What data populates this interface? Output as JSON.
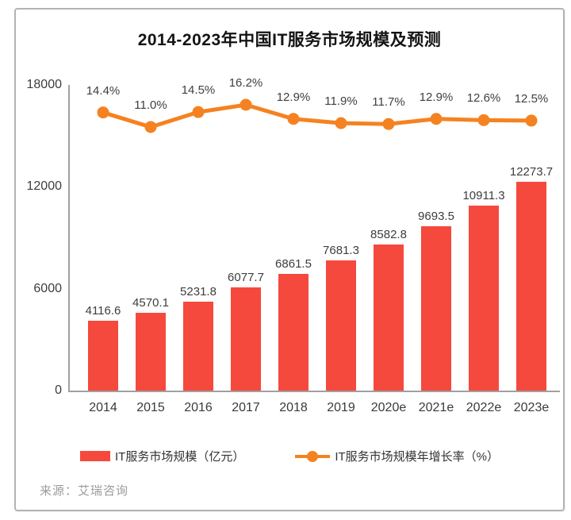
{
  "title": "2014-2023年中国IT服务市场规模及预测",
  "source": "来源：艾瑞咨询",
  "colors": {
    "bar": "#F5493D",
    "line": "#F58220",
    "axis": "#a0a0a0",
    "value_label": "#3d3d3d",
    "source_text": "#9b9b9b"
  },
  "legend": [
    {
      "label": "IT服务市场规模（亿元）",
      "type": "bar"
    },
    {
      "label": "IT服务市场规模年增长率（%）",
      "type": "line"
    }
  ],
  "chart_data": {
    "type": "bar",
    "title": "2014-2023年中国IT服务市场规模及预测",
    "categories": [
      "2014",
      "2015",
      "2016",
      "2017",
      "2018",
      "2019",
      "2020e",
      "2021e",
      "2022e",
      "2023e"
    ],
    "series": [
      {
        "name": "IT服务市场规模（亿元）",
        "type": "bar",
        "values": [
          4116.6,
          4570.1,
          5231.8,
          6077.7,
          6861.5,
          7681.3,
          8582.8,
          9693.5,
          10911.3,
          12273.7
        ],
        "labels": [
          "4116.6",
          "4570.1",
          "5231.8",
          "6077.7",
          "6861.5",
          "7681.3",
          "8582.8",
          "9693.5",
          "10911.3",
          "12273.7"
        ]
      },
      {
        "name": "IT服务市场规模年增长率（%）",
        "type": "line",
        "values": [
          14.4,
          11.0,
          14.5,
          16.2,
          12.9,
          11.9,
          11.7,
          12.9,
          12.6,
          12.5
        ],
        "labels": [
          "14.4%",
          "11.0%",
          "14.5%",
          "16.2%",
          "12.9%",
          "11.9%",
          "11.7%",
          "12.9%",
          "12.6%",
          "12.5%"
        ]
      }
    ],
    "y_axis": {
      "ticks": [
        0,
        6000,
        12000,
        18000
      ],
      "max": 18000,
      "label": ""
    },
    "xlabel": "",
    "ylabel": "",
    "grid": false,
    "legend_position": "bottom"
  }
}
